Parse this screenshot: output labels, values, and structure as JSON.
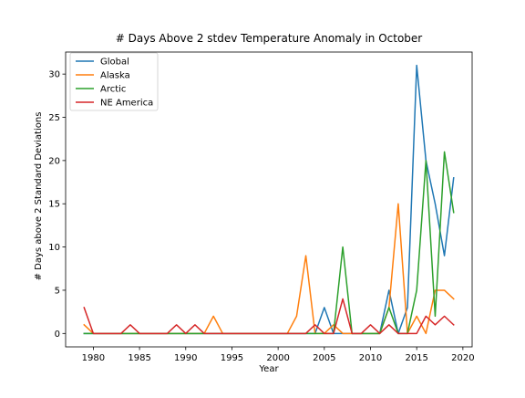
{
  "chart_data": {
    "type": "line",
    "title": "# Days Above 2 stdev Temperature Anomaly in October",
    "xlabel": "Year",
    "ylabel": "# Days above 2 Standard Deviations",
    "xlim": [
      1977,
      2021
    ],
    "ylim": [
      -1.55,
      32.55
    ],
    "xticks": [
      1980,
      1985,
      1990,
      1995,
      2000,
      2005,
      2010,
      2015,
      2020
    ],
    "yticks": [
      0,
      5,
      10,
      15,
      20,
      25,
      30
    ],
    "grid": false,
    "legend_position": "top-left",
    "x": [
      1979,
      1980,
      1981,
      1982,
      1983,
      1984,
      1985,
      1986,
      1987,
      1988,
      1989,
      1990,
      1991,
      1992,
      1993,
      1994,
      1995,
      1996,
      1997,
      1998,
      1999,
      2000,
      2001,
      2002,
      2003,
      2004,
      2005,
      2006,
      2007,
      2008,
      2009,
      2010,
      2011,
      2012,
      2013,
      2014,
      2015,
      2016,
      2017,
      2018,
      2019
    ],
    "series": [
      {
        "name": "Global",
        "color": "#1f77b4",
        "values": [
          0,
          0,
          0,
          0,
          0,
          0,
          0,
          0,
          0,
          0,
          0,
          0,
          0,
          0,
          0,
          0,
          0,
          0,
          0,
          0,
          0,
          0,
          0,
          0,
          0,
          0,
          3,
          0,
          0,
          0,
          0,
          0,
          0,
          5,
          0,
          3,
          31,
          20,
          15,
          9,
          18
        ]
      },
      {
        "name": "Alaska",
        "color": "#ff7f0e",
        "values": [
          1,
          0,
          0,
          0,
          0,
          0,
          0,
          0,
          0,
          0,
          0,
          0,
          0,
          0,
          2,
          0,
          0,
          0,
          0,
          0,
          0,
          0,
          0,
          2,
          9,
          0,
          0,
          1,
          0,
          0,
          0,
          0,
          0,
          3,
          15,
          0,
          2,
          0,
          5,
          5,
          4
        ]
      },
      {
        "name": "Arctic",
        "color": "#2ca02c",
        "values": [
          0,
          0,
          0,
          0,
          0,
          0,
          0,
          0,
          0,
          0,
          0,
          0,
          0,
          0,
          0,
          0,
          0,
          0,
          0,
          0,
          0,
          0,
          0,
          0,
          0,
          0,
          0,
          0,
          10,
          0,
          0,
          0,
          0,
          3,
          0,
          0,
          5,
          20,
          2,
          21,
          14
        ]
      },
      {
        "name": "NE America",
        "color": "#d62728",
        "values": [
          3,
          0,
          0,
          0,
          0,
          1,
          0,
          0,
          0,
          0,
          1,
          0,
          1,
          0,
          0,
          0,
          0,
          0,
          0,
          0,
          0,
          0,
          0,
          0,
          0,
          1,
          0,
          0,
          4,
          0,
          0,
          1,
          0,
          1,
          0,
          0,
          0,
          2,
          1,
          2,
          1
        ]
      }
    ]
  }
}
